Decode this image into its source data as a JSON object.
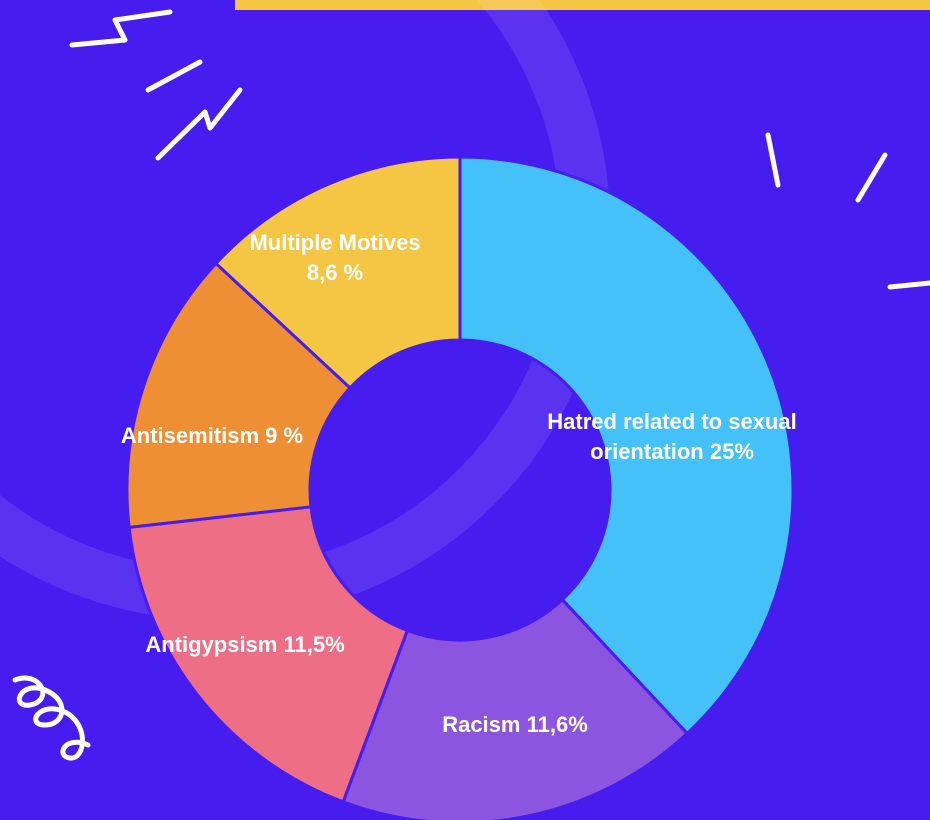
{
  "chart_data": {
    "type": "pie",
    "categories": [
      "Hatred related to sexual orientation",
      "Racism",
      "Antigypsism",
      "Antisemitism",
      "Multiple Motives"
    ],
    "values": [
      25,
      11.6,
      11.5,
      9,
      8.6
    ],
    "value_labels": [
      "25%",
      "11,6%",
      "11,5%",
      "9 %",
      "8,6 %"
    ],
    "colors": [
      "#45c1f9",
      "#8c55e0",
      "#ee6e85",
      "#ee8f35",
      "#f5c544"
    ],
    "donut": true
  }
}
